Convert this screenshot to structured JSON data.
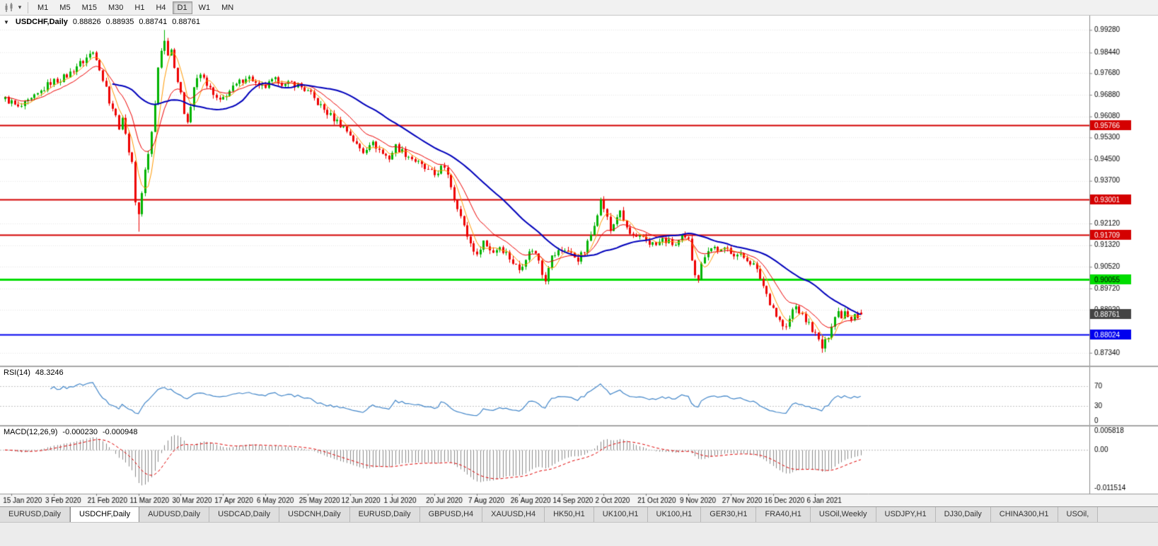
{
  "toolbar": {
    "timeframes": [
      {
        "label": "M1",
        "active": false
      },
      {
        "label": "M5",
        "active": false
      },
      {
        "label": "M15",
        "active": false
      },
      {
        "label": "M30",
        "active": false
      },
      {
        "label": "H1",
        "active": false
      },
      {
        "label": "H4",
        "active": false
      },
      {
        "label": "D1",
        "active": true
      },
      {
        "label": "W1",
        "active": false
      },
      {
        "label": "MN",
        "active": false
      }
    ]
  },
  "chart": {
    "symbol_title": "USDCHF,Daily",
    "ohlc": {
      "open": "0.88826",
      "high": "0.88935",
      "low": "0.88741",
      "close": "0.88761"
    },
    "chart_data": {
      "type": "candlestick",
      "title": "USDCHF,Daily",
      "bars": 264,
      "up_color": "#00b300",
      "down_color": "#ee0000",
      "price_range": {
        "top": 0.9955,
        "bottom": 0.871
      },
      "price_axis_ticks": [
        "0.99280",
        "0.98440",
        "0.97680",
        "0.96880",
        "0.96080",
        "0.95300",
        "0.94500",
        "0.93700",
        "0.92120",
        "0.91320",
        "0.90520",
        "0.89720",
        "0.88920",
        "0.87340"
      ],
      "current_price": {
        "value": 0.88761,
        "label": "0.88761",
        "tag_color": "#444444",
        "text_color": "#ffffff"
      },
      "hlines": [
        {
          "price": 0.95766,
          "label": "0.95766",
          "color": "#d40000",
          "text_color": "#ffffff",
          "width": 2
        },
        {
          "price": 0.93001,
          "label": "0.93001",
          "color": "#d40000",
          "text_color": "#ffffff",
          "width": 2
        },
        {
          "price": 0.91709,
          "label": "0.91709",
          "color": "#d40000",
          "text_color": "#ffffff",
          "width": 2
        },
        {
          "price": 0.90055,
          "label": "0.90055",
          "color": "#00dd00",
          "text_color": "#000000",
          "width": 3
        },
        {
          "price": 0.88024,
          "label": "0.88024",
          "color": "#0000ee",
          "text_color": "#ffffff",
          "width": 2
        }
      ],
      "overlays": [
        {
          "name": "ma-fast",
          "type": "sma",
          "period": 5,
          "color": "#ff9900",
          "width": 1
        },
        {
          "name": "ma-mid",
          "type": "ema",
          "period": 13,
          "color": "#ee0000",
          "width": 1
        },
        {
          "name": "ma-slow",
          "type": "sma",
          "period": 34,
          "color": "#0000bb",
          "width": 2
        }
      ],
      "x_ticks": {
        "first_bar": 2,
        "step": 13
      },
      "last_bar_ohlc": {
        "open": 0.88826,
        "high": 0.88935,
        "low": 0.88741,
        "close": 0.88761
      },
      "noise": {
        "close_amp": 0.0013,
        "wick_amp": 0.0028
      },
      "close_anchors": [
        [
          0,
          0.9672
        ],
        [
          2,
          0.966
        ],
        [
          4,
          0.9638
        ],
        [
          6,
          0.9652
        ],
        [
          8,
          0.9668
        ],
        [
          10,
          0.9688
        ],
        [
          12,
          0.9712
        ],
        [
          14,
          0.9735
        ],
        [
          16,
          0.9742
        ],
        [
          18,
          0.9752
        ],
        [
          20,
          0.9768
        ],
        [
          22,
          0.9796
        ],
        [
          24,
          0.9812
        ],
        [
          26,
          0.9838
        ],
        [
          27,
          0.9845
        ],
        [
          28,
          0.9828
        ],
        [
          29,
          0.979
        ],
        [
          30,
          0.9745
        ],
        [
          31,
          0.9715
        ],
        [
          32,
          0.9668
        ],
        [
          33,
          0.964
        ],
        [
          34,
          0.9606
        ],
        [
          35,
          0.9572
        ],
        [
          36,
          0.959
        ],
        [
          37,
          0.9556
        ],
        [
          38,
          0.948
        ],
        [
          39,
          0.943
        ],
        [
          40,
          0.93
        ],
        [
          41,
          0.9245
        ],
        [
          42,
          0.933
        ],
        [
          43,
          0.941
        ],
        [
          44,
          0.947
        ],
        [
          45,
          0.9545
        ],
        [
          46,
          0.965
        ],
        [
          47,
          0.979
        ],
        [
          48,
          0.9858
        ],
        [
          49,
          0.9885
        ],
        [
          50,
          0.9845
        ],
        [
          51,
          0.9856
        ],
        [
          52,
          0.98
        ],
        [
          53,
          0.974
        ],
        [
          54,
          0.9685
        ],
        [
          55,
          0.9625
        ],
        [
          56,
          0.9598
        ],
        [
          57,
          0.9645
        ],
        [
          58,
          0.9718
        ],
        [
          60,
          0.9762
        ],
        [
          62,
          0.973
        ],
        [
          64,
          0.9684
        ],
        [
          66,
          0.966
        ],
        [
          68,
          0.9692
        ],
        [
          70,
          0.9712
        ],
        [
          72,
          0.9734
        ],
        [
          74,
          0.9756
        ],
        [
          76,
          0.9744
        ],
        [
          78,
          0.9712
        ],
        [
          80,
          0.9718
        ],
        [
          82,
          0.9736
        ],
        [
          84,
          0.9744
        ],
        [
          86,
          0.9722
        ],
        [
          88,
          0.9732
        ],
        [
          90,
          0.9724
        ],
        [
          92,
          0.9708
        ],
        [
          94,
          0.9688
        ],
        [
          96,
          0.9658
        ],
        [
          98,
          0.9632
        ],
        [
          100,
          0.961
        ],
        [
          102,
          0.959
        ],
        [
          104,
          0.9568
        ],
        [
          106,
          0.9542
        ],
        [
          108,
          0.95
        ],
        [
          110,
          0.9478
        ],
        [
          112,
          0.9512
        ],
        [
          114,
          0.9498
        ],
        [
          116,
          0.947
        ],
        [
          118,
          0.9455
        ],
        [
          120,
          0.9498
        ],
        [
          122,
          0.9478
        ],
        [
          124,
          0.9462
        ],
        [
          126,
          0.9444
        ],
        [
          128,
          0.9424
        ],
        [
          130,
          0.9405
        ],
        [
          132,
          0.9392
        ],
        [
          134,
          0.9418
        ],
        [
          136,
          0.9398
        ],
        [
          137,
          0.9352
        ],
        [
          138,
          0.9308
        ],
        [
          139,
          0.9278
        ],
        [
          140,
          0.9238
        ],
        [
          141,
          0.9198
        ],
        [
          142,
          0.9168
        ],
        [
          143,
          0.9138
        ],
        [
          144,
          0.9118
        ],
        [
          145,
          0.9088
        ],
        [
          146,
          0.9128
        ],
        [
          147,
          0.9148
        ],
        [
          148,
          0.9128
        ],
        [
          150,
          0.9108
        ],
        [
          152,
          0.9128
        ],
        [
          154,
          0.9102
        ],
        [
          156,
          0.9068
        ],
        [
          158,
          0.9042
        ],
        [
          160,
          0.9088
        ],
        [
          162,
          0.9118
        ],
        [
          164,
          0.9078
        ],
        [
          165,
          0.9032
        ],
        [
          166,
          0.9008
        ],
        [
          167,
          0.9058
        ],
        [
          168,
          0.9088
        ],
        [
          170,
          0.9108
        ],
        [
          172,
          0.9118
        ],
        [
          174,
          0.9098
        ],
        [
          176,
          0.9082
        ],
        [
          178,
          0.9108
        ],
        [
          180,
          0.917
        ],
        [
          181,
          0.9215
        ],
        [
          182,
          0.9255
        ],
        [
          183,
          0.9295
        ],
        [
          184,
          0.927
        ],
        [
          185,
          0.923
        ],
        [
          186,
          0.9185
        ],
        [
          187,
          0.9212
        ],
        [
          188,
          0.924
        ],
        [
          189,
          0.925
        ],
        [
          190,
          0.9222
        ],
        [
          191,
          0.9195
        ],
        [
          192,
          0.9172
        ],
        [
          194,
          0.9152
        ],
        [
          196,
          0.9162
        ],
        [
          198,
          0.9142
        ],
        [
          200,
          0.9132
        ],
        [
          202,
          0.9152
        ],
        [
          204,
          0.9142
        ],
        [
          206,
          0.9132
        ],
        [
          208,
          0.9158
        ],
        [
          210,
          0.9148
        ],
        [
          211,
          0.9082
        ],
        [
          212,
          0.9032
        ],
        [
          213,
          0.9012
        ],
        [
          214,
          0.9058
        ],
        [
          215,
          0.9098
        ],
        [
          216,
          0.9118
        ],
        [
          218,
          0.9124
        ],
        [
          220,
          0.9108
        ],
        [
          222,
          0.9118
        ],
        [
          224,
          0.9102
        ],
        [
          226,
          0.9092
        ],
        [
          228,
          0.9082
        ],
        [
          230,
          0.9058
        ],
        [
          232,
          0.9012
        ],
        [
          233,
          0.8982
        ],
        [
          234,
          0.8952
        ],
        [
          235,
          0.8922
        ],
        [
          236,
          0.8902
        ],
        [
          237,
          0.8872
        ],
        [
          238,
          0.8852
        ],
        [
          239,
          0.8832
        ],
        [
          240,
          0.8824
        ],
        [
          241,
          0.8858
        ],
        [
          242,
          0.8892
        ],
        [
          243,
          0.8904
        ],
        [
          244,
          0.8888
        ],
        [
          245,
          0.8868
        ],
        [
          246,
          0.8854
        ],
        [
          247,
          0.884
        ],
        [
          248,
          0.8822
        ],
        [
          249,
          0.88
        ],
        [
          250,
          0.8778
        ],
        [
          251,
          0.8752
        ],
        [
          252,
          0.8772
        ],
        [
          253,
          0.88
        ],
        [
          254,
          0.8842
        ],
        [
          255,
          0.8868
        ],
        [
          256,
          0.8886
        ],
        [
          257,
          0.8872
        ],
        [
          258,
          0.889
        ],
        [
          259,
          0.8876
        ],
        [
          260,
          0.8862
        ],
        [
          261,
          0.8886
        ],
        [
          262,
          0.8868
        ],
        [
          263,
          0.88761
        ]
      ],
      "extremes": [
        {
          "bar": 26,
          "high": 0.9852
        },
        {
          "bar": 41,
          "low": 0.9182
        },
        {
          "bar": 49,
          "high": 0.9928
        },
        {
          "bar": 166,
          "low": 0.9
        },
        {
          "bar": 183,
          "high": 0.9308
        },
        {
          "bar": 213,
          "low": 0.8998
        },
        {
          "bar": 240,
          "low": 0.882
        },
        {
          "bar": 251,
          "low": 0.8734
        }
      ]
    }
  },
  "rsi_panel": {
    "title": "RSI(14)",
    "value": "48.3246",
    "period": 14,
    "levels": [
      70,
      30
    ],
    "axis_labels": [
      "70",
      "30",
      "0"
    ],
    "line_color": "#4286c9"
  },
  "macd_panel": {
    "title": "MACD(12,26,9)",
    "macd_value": "-0.000230",
    "signal_value": "-0.000948",
    "fast": 12,
    "slow": 26,
    "signal": 9,
    "axis_labels": [
      "0.005818",
      "0.00",
      "-0.011514"
    ],
    "scale_max": 0.005818,
    "scale_min": -0.011514,
    "hist_color": "#8a8a8a",
    "signal_color": "#e00000"
  },
  "date_axis": {
    "labels": [
      "15 Jan 2020",
      "3 Feb 2020",
      "21 Feb 2020",
      "11 Mar 2020",
      "30 Mar 2020",
      "17 Apr 2020",
      "6 May 2020",
      "25 May 2020",
      "12 Jun 2020",
      "1 Jul 2020",
      "20 Jul 2020",
      "7 Aug 2020",
      "26 Aug 2020",
      "14 Sep 2020",
      "2 Oct 2020",
      "21 Oct 2020",
      "9 Nov 2020",
      "27 Nov 2020",
      "16 Dec 2020",
      "6 Jan 2021"
    ]
  },
  "tabs": {
    "items": [
      {
        "label": "EURUSD,Daily",
        "active": false
      },
      {
        "label": "USDCHF,Daily",
        "active": true
      },
      {
        "label": "AUDUSD,Daily",
        "active": false
      },
      {
        "label": "USDCAD,Daily",
        "active": false
      },
      {
        "label": "USDCNH,Daily",
        "active": false
      },
      {
        "label": "EURUSD,Daily",
        "active": false
      },
      {
        "label": "GBPUSD,H4",
        "active": false
      },
      {
        "label": "XAUUSD,H4",
        "active": false
      },
      {
        "label": "HK50,H1",
        "active": false
      },
      {
        "label": "UK100,H1",
        "active": false
      },
      {
        "label": "UK100,H1",
        "active": false
      },
      {
        "label": "GER30,H1",
        "active": false
      },
      {
        "label": "FRA40,H1",
        "active": false
      },
      {
        "label": "USOil,Weekly",
        "active": false
      },
      {
        "label": "USDJPY,H1",
        "active": false
      },
      {
        "label": "DJ30,Daily",
        "active": false
      },
      {
        "label": "CHINA300,H1",
        "active": false
      },
      {
        "label": "USOil,",
        "active": false
      }
    ]
  }
}
